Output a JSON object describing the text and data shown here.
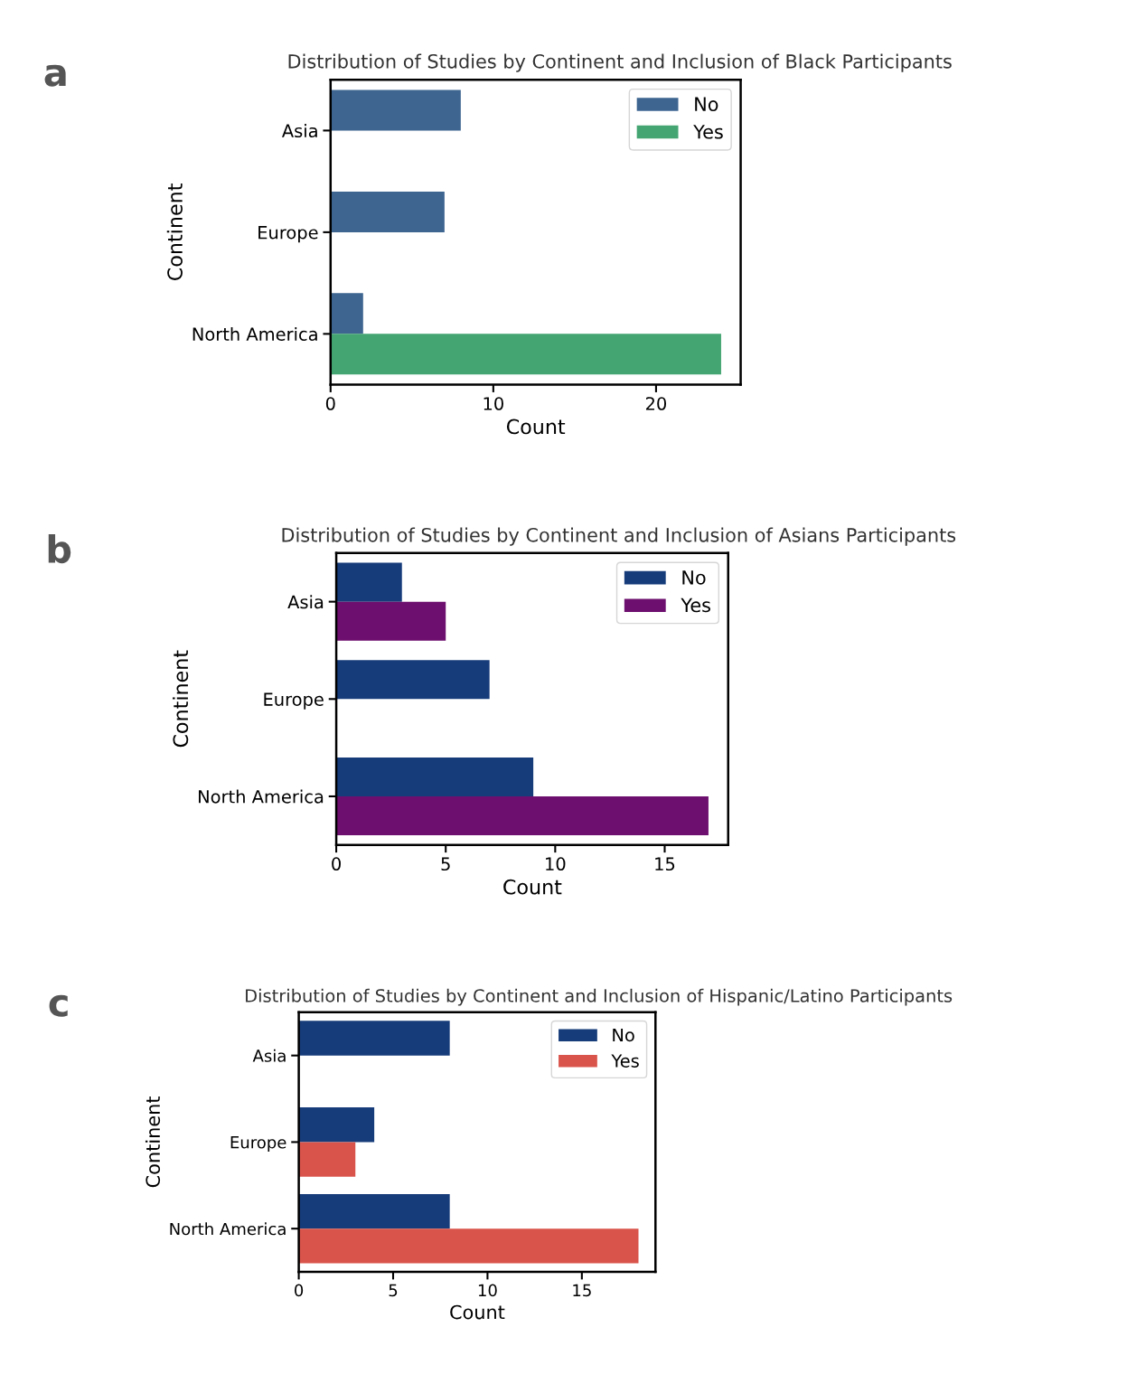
{
  "chart_data": [
    {
      "type": "bar",
      "orientation": "horizontal",
      "title": "Distribution of Studies by Continent and Inclusion of Black Participants",
      "xlabel": "Count",
      "ylabel": "Continent",
      "annotations": [
        "a"
      ],
      "categories": [
        "Asia",
        "Europe",
        "North America"
      ],
      "series": [
        {
          "name": "No",
          "color": "#3d6590",
          "values": [
            8,
            7,
            2
          ]
        },
        {
          "name": "Yes",
          "color": "#44a572",
          "values": [
            null,
            null,
            24
          ]
        }
      ],
      "xlim": [
        0,
        25.2
      ],
      "xticks": [
        0,
        10,
        20
      ],
      "legend": "top right",
      "grid": false
    },
    {
      "type": "bar",
      "orientation": "horizontal",
      "title": "Distribution of Studies by Continent and Inclusion of Asians Participants",
      "xlabel": "Count",
      "ylabel": "Continent",
      "annotations": [
        "b"
      ],
      "categories": [
        "Asia",
        "Europe",
        "North America"
      ],
      "series": [
        {
          "name": "No",
          "color": "#173c7a",
          "values": [
            3,
            7,
            9
          ]
        },
        {
          "name": "Yes",
          "color": "#6d0f6e",
          "values": [
            5,
            null,
            17
          ]
        }
      ],
      "xlim": [
        0,
        17.9
      ],
      "xticks": [
        0,
        5,
        10,
        15
      ],
      "legend": "top right",
      "grid": false
    },
    {
      "type": "bar",
      "orientation": "horizontal",
      "title": "Distribution of Studies by Continent and Inclusion of Hispanic/Latino Participants",
      "xlabel": "Count",
      "ylabel": "Continent",
      "annotations": [
        "c"
      ],
      "categories": [
        "Asia",
        "Europe",
        "North America"
      ],
      "series": [
        {
          "name": "No",
          "color": "#173c7a",
          "values": [
            8,
            4,
            8
          ]
        },
        {
          "name": "Yes",
          "color": "#d9544b",
          "values": [
            null,
            3,
            18
          ]
        }
      ],
      "xlim": [
        0,
        18.9
      ],
      "xticks": [
        0,
        5,
        10,
        15
      ],
      "legend": "top right",
      "grid": false
    }
  ]
}
